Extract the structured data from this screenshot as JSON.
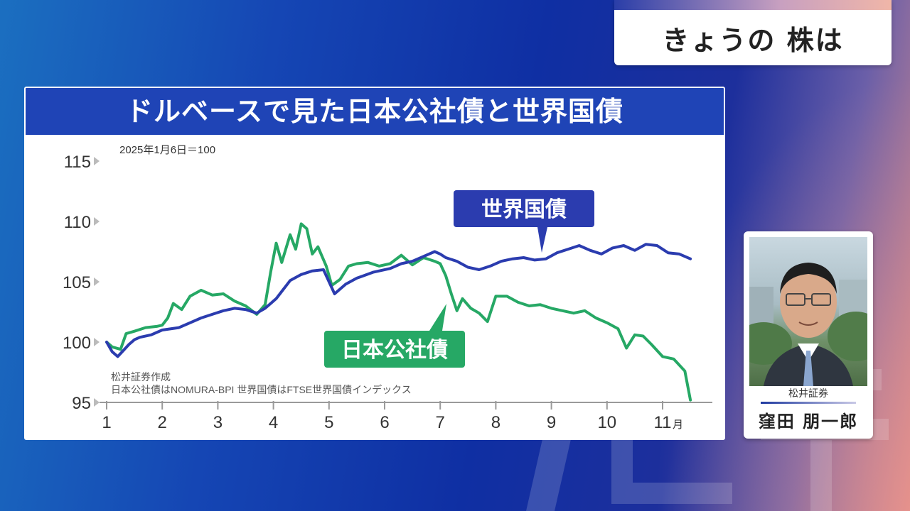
{
  "corner_title": "きょうの 株は",
  "chart_data": {
    "type": "line",
    "title": "ドルベースで見た日本公社債と世界国債",
    "base_note": "2025年1月6日＝100",
    "source_note_1": "松井証券作成",
    "source_note_2": "日本公社債はNOMURA-BPI 世界国債はFTSE世界国債インデックス",
    "ylim": [
      95,
      115
    ],
    "y_ticks": [
      "115",
      "110",
      "105",
      "100",
      "95"
    ],
    "xlim": [
      1,
      11.7
    ],
    "x_ticks": [
      "1",
      "2",
      "3",
      "4",
      "5",
      "6",
      "7",
      "8",
      "9",
      "10",
      "11"
    ],
    "x_unit": "月",
    "grid": false,
    "series": [
      {
        "name": "世界国債",
        "color": "#2b3caf",
        "x": [
          1.0,
          1.1,
          1.2,
          1.3,
          1.4,
          1.5,
          1.6,
          1.8,
          2.0,
          2.3,
          2.5,
          2.7,
          2.9,
          3.1,
          3.3,
          3.5,
          3.7,
          3.85,
          3.95,
          4.05,
          4.15,
          4.3,
          4.5,
          4.7,
          4.9,
          5.1,
          5.3,
          5.5,
          5.8,
          6.1,
          6.3,
          6.5,
          6.7,
          6.9,
          7.0,
          7.1,
          7.3,
          7.5,
          7.7,
          7.9,
          8.1,
          8.3,
          8.5,
          8.7,
          8.9,
          9.1,
          9.3,
          9.5,
          9.7,
          9.9,
          10.1,
          10.3,
          10.5,
          10.7,
          10.9,
          11.1,
          11.3,
          11.5
        ],
        "values": [
          100.0,
          99.2,
          98.8,
          99.3,
          99.8,
          100.2,
          100.4,
          100.6,
          101.0,
          101.2,
          101.6,
          102.0,
          102.3,
          102.6,
          102.8,
          102.7,
          102.4,
          102.8,
          103.2,
          103.6,
          104.2,
          105.1,
          105.6,
          105.9,
          106.0,
          104.0,
          104.8,
          105.3,
          105.8,
          106.1,
          106.5,
          106.7,
          107.1,
          107.5,
          107.3,
          107.0,
          106.7,
          106.2,
          106.0,
          106.3,
          106.7,
          106.9,
          107.0,
          106.8,
          106.9,
          107.4,
          107.7,
          108.0,
          107.6,
          107.3,
          107.8,
          108.0,
          107.6,
          108.1,
          108.0,
          107.4,
          107.3,
          106.9
        ]
      },
      {
        "name": "日本公社債",
        "color": "#26a865",
        "x": [
          1.0,
          1.1,
          1.25,
          1.35,
          1.5,
          1.7,
          1.9,
          2.0,
          2.1,
          2.2,
          2.35,
          2.5,
          2.7,
          2.9,
          3.1,
          3.3,
          3.5,
          3.7,
          3.85,
          3.95,
          4.05,
          4.15,
          4.3,
          4.4,
          4.5,
          4.6,
          4.7,
          4.8,
          4.95,
          5.05,
          5.2,
          5.35,
          5.5,
          5.7,
          5.9,
          6.1,
          6.3,
          6.5,
          6.7,
          6.9,
          7.0,
          7.1,
          7.2,
          7.3,
          7.4,
          7.55,
          7.7,
          7.85,
          8.0,
          8.2,
          8.4,
          8.6,
          8.8,
          9.0,
          9.2,
          9.4,
          9.6,
          9.8,
          10.0,
          10.2,
          10.35,
          10.5,
          10.65,
          10.8,
          11.0,
          11.2,
          11.4,
          11.5
        ],
        "values": [
          100.0,
          99.6,
          99.4,
          100.7,
          100.9,
          101.2,
          101.3,
          101.4,
          102.0,
          103.2,
          102.7,
          103.8,
          104.3,
          103.9,
          104.0,
          103.4,
          103.0,
          102.3,
          103.1,
          105.8,
          108.2,
          106.6,
          108.9,
          107.7,
          109.8,
          109.4,
          107.3,
          107.9,
          106.3,
          104.7,
          105.2,
          106.3,
          106.5,
          106.6,
          106.3,
          106.5,
          107.2,
          106.4,
          107.0,
          106.7,
          106.5,
          105.5,
          104.0,
          102.6,
          103.6,
          102.8,
          102.4,
          101.7,
          103.8,
          103.8,
          103.3,
          103.0,
          103.1,
          102.8,
          102.6,
          102.4,
          102.6,
          102.0,
          101.6,
          101.1,
          99.5,
          100.6,
          100.5,
          99.8,
          98.8,
          98.6,
          97.6,
          95.2
        ]
      }
    ]
  },
  "person": {
    "org": "松井証券",
    "name": "窪田 朋一郎"
  },
  "colors": {
    "header_blue": "#1f44b6",
    "world_bond": "#2b3caf",
    "japan_bond": "#26a865"
  }
}
